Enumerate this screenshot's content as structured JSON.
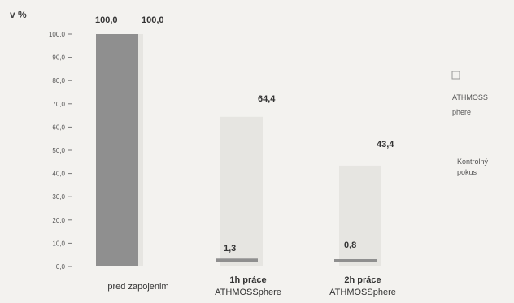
{
  "chart_data": {
    "type": "bar",
    "unit_label": "v %",
    "yticks": [
      "0,0",
      "10,0",
      "20,0",
      "30,0",
      "40,0",
      "50,0",
      "60,0",
      "70,0",
      "80,0",
      "90,0",
      "100,0"
    ],
    "ylim": [
      0,
      100
    ],
    "categories": [
      {
        "line1": "pred zapojenim",
        "line2": ""
      },
      {
        "line1": "1h práce",
        "line2": "ATHMOSSphere"
      },
      {
        "line1": "2h práce",
        "line2": "ATHMOSSphere"
      }
    ],
    "series": [
      {
        "name": "ATHMOSS phere",
        "values": [
          100.0,
          1.3,
          0.8
        ],
        "labels": [
          "100,0",
          "1,3",
          "0,8"
        ],
        "color": "#8f8f8f"
      },
      {
        "name": "Kontrolný pokus",
        "values": [
          100.0,
          64.4,
          43.4
        ],
        "labels": [
          "100,0",
          "64,4",
          "43,4"
        ],
        "color": "#e6e5e1"
      }
    ],
    "legend": {
      "position": "right",
      "items": [
        {
          "line1": "ATHMOSS",
          "line2": "phere"
        },
        {
          "line1": "Kontrolný",
          "line2": "pokus"
        }
      ]
    }
  }
}
